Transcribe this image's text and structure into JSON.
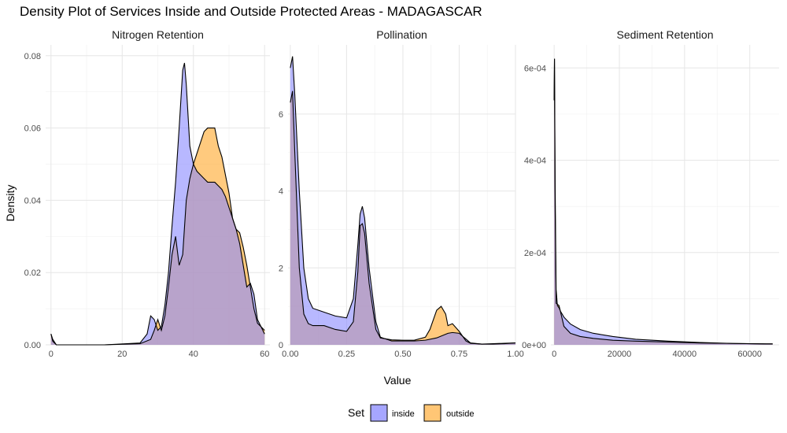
{
  "chart_data": {
    "type": "area",
    "title": "Density Plot of Services Inside and Outside Protected Areas - MADAGASCAR",
    "xlabel": "Value",
    "ylabel": "Density",
    "grid": true,
    "legend": {
      "title": "Set",
      "position": "bottom",
      "entries": [
        {
          "label": "inside",
          "color": "#8888ff"
        },
        {
          "label": "outside",
          "color": "#ffb347"
        }
      ]
    },
    "colors": {
      "inside": "#8888ff",
      "outside": "#ffb347",
      "overlap": "#b89295",
      "outline": "#000000"
    },
    "panels": [
      {
        "title": "Nitrogen Retention",
        "xlim": [
          -1.5,
          61.5
        ],
        "ylim": [
          0,
          0.083
        ],
        "xticks": [
          0,
          20,
          40,
          60
        ],
        "xtick_labels": [
          "0",
          "20",
          "40",
          "60"
        ],
        "yticks": [
          0,
          0.02,
          0.04,
          0.06,
          0.08
        ],
        "ytick_labels": [
          "0.00",
          "0.02",
          "0.04",
          "0.06",
          "0.08"
        ],
        "series": [
          {
            "name": "inside",
            "x": [
              0,
              0.5,
              1.5,
              5,
              15,
              25,
              27,
              28,
              29,
              30,
              31,
              32,
              33,
              34,
              35,
              36,
              37,
              37.5,
              38,
              39,
              40,
              41,
              42,
              43,
              44,
              45,
              46,
              47,
              48,
              49,
              50,
              51,
              52,
              53,
              54,
              55,
              56,
              57,
              58,
              59,
              60
            ],
            "y": [
              0.003,
              0.0015,
              0,
              0,
              0,
              0.0005,
              0.003,
              0.008,
              0.007,
              0.004,
              0.005,
              0.011,
              0.02,
              0.033,
              0.045,
              0.06,
              0.076,
              0.078,
              0.072,
              0.055,
              0.05,
              0.048,
              0.047,
              0.046,
              0.045,
              0.045,
              0.045,
              0.044,
              0.043,
              0.041,
              0.038,
              0.035,
              0.032,
              0.028,
              0.022,
              0.016,
              0.017,
              0.014,
              0.007,
              0.005,
              0.003
            ]
          },
          {
            "name": "outside",
            "x": [
              0,
              0.5,
              1.5,
              5,
              15,
              25,
              28,
              29,
              30,
              31,
              32,
              33,
              34,
              35,
              36,
              37,
              38,
              39,
              40,
              41,
              42,
              43,
              44,
              45,
              46,
              47,
              48,
              49,
              50,
              51,
              52,
              53,
              54,
              55,
              56,
              57,
              58,
              59,
              60
            ],
            "y": [
              0.003,
              0.001,
              0,
              0,
              0,
              0.0003,
              0.0015,
              0.004,
              0.007,
              0.004,
              0.008,
              0.016,
              0.025,
              0.03,
              0.022,
              0.025,
              0.04,
              0.046,
              0.05,
              0.053,
              0.056,
              0.059,
              0.06,
              0.06,
              0.06,
              0.055,
              0.052,
              0.047,
              0.042,
              0.035,
              0.032,
              0.031,
              0.027,
              0.022,
              0.016,
              0.01,
              0.006,
              0.005,
              0.004
            ]
          }
        ]
      },
      {
        "title": "Pollination",
        "xlim": [
          -0.01,
          1.0
        ],
        "ylim": [
          0,
          7.8
        ],
        "xticks": [
          0,
          0.25,
          0.5,
          0.75,
          1.0
        ],
        "xtick_labels": [
          "0.00",
          "0.25",
          "0.50",
          "0.75",
          "1.00"
        ],
        "yticks": [
          0,
          2,
          4,
          6
        ],
        "ytick_labels": [
          "0",
          "2",
          "4",
          "6"
        ],
        "series": [
          {
            "name": "inside",
            "x": [
              0,
              0.01,
              0.02,
              0.04,
              0.06,
              0.08,
              0.1,
              0.15,
              0.2,
              0.25,
              0.28,
              0.3,
              0.31,
              0.32,
              0.33,
              0.35,
              0.38,
              0.4,
              0.45,
              0.5,
              0.55,
              0.6,
              0.65,
              0.7,
              0.72,
              0.75,
              0.78,
              0.8,
              0.85,
              0.9,
              0.95,
              1.0
            ],
            "y": [
              7.2,
              7.5,
              6.5,
              4.0,
              2.0,
              1.2,
              0.95,
              0.85,
              0.75,
              0.7,
              1.2,
              2.6,
              3.4,
              3.6,
              3.3,
              2.0,
              0.6,
              0.2,
              0.1,
              0.1,
              0.1,
              0.12,
              0.18,
              0.3,
              0.32,
              0.3,
              0.15,
              0.05,
              0.02,
              0.02,
              0.03,
              0.05
            ]
          },
          {
            "name": "outside",
            "x": [
              0,
              0.01,
              0.02,
              0.04,
              0.06,
              0.08,
              0.1,
              0.15,
              0.2,
              0.25,
              0.28,
              0.3,
              0.31,
              0.32,
              0.33,
              0.35,
              0.38,
              0.4,
              0.45,
              0.5,
              0.55,
              0.6,
              0.62,
              0.65,
              0.67,
              0.69,
              0.7,
              0.72,
              0.75,
              0.78,
              0.8,
              0.85,
              0.9,
              0.95,
              1.0
            ],
            "y": [
              6.3,
              6.6,
              5.0,
              2.0,
              0.8,
              0.55,
              0.5,
              0.5,
              0.4,
              0.35,
              0.6,
              1.9,
              3.1,
              3.15,
              2.9,
              1.6,
              0.4,
              0.18,
              0.13,
              0.12,
              0.12,
              0.2,
              0.4,
              0.9,
              1.0,
              0.8,
              0.5,
              0.55,
              0.35,
              0.1,
              0.04,
              0.02,
              0.03,
              0.04,
              0.05
            ]
          }
        ]
      },
      {
        "title": "Sediment Retention",
        "xlim": [
          -1000,
          69000
        ],
        "ylim": [
          0,
          0.00065
        ],
        "xticks": [
          0,
          20000,
          40000,
          60000
        ],
        "xtick_labels": [
          "0",
          "20000",
          "40000",
          "60000"
        ],
        "yticks": [
          0,
          0.0002,
          0.0004,
          0.0006
        ],
        "ytick_labels": [
          "0e+00",
          "2e-04",
          "4e-04",
          "6e-04"
        ],
        "series": [
          {
            "name": "inside",
            "x": [
              0,
              100,
              300,
              600,
              1000,
              1500,
              2000,
              3000,
              5000,
              8000,
              12000,
              18000,
              25000,
              35000,
              45000,
              55000,
              65000,
              67000
            ],
            "y": [
              0.00053,
              0.00062,
              0.00035,
              0.00012,
              8.5e-05,
              8e-05,
              7.2e-05,
              6e-05,
              4.5e-05,
              3.3e-05,
              2.5e-05,
              1.8e-05,
              1.2e-05,
              8e-06,
              5e-06,
              3e-06,
              2e-06,
              2e-06
            ]
          },
          {
            "name": "outside",
            "x": [
              0,
              100,
              300,
              600,
              1000,
              1500,
              2000,
              3000,
              5000,
              8000,
              12000,
              18000,
              25000,
              35000,
              45000,
              55000,
              65000,
              67000
            ],
            "y": [
              0.00053,
              0.00062,
              0.0003,
              9e-05,
              8.8e-05,
              8.5e-05,
              7e-05,
              4e-05,
              2.5e-05,
              1.8e-05,
              1.4e-05,
              1e-05,
              8e-06,
              6e-06,
              4e-06,
              3e-06,
              2e-06,
              2e-06
            ]
          }
        ]
      }
    ]
  }
}
